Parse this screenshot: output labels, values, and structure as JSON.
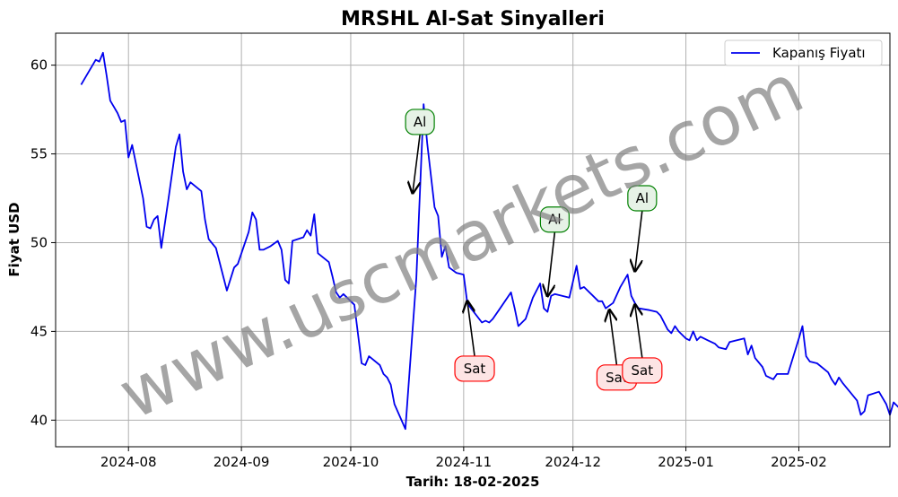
{
  "chart_data": {
    "type": "line",
    "title": "MRSHL Al-Sat Sinyalleri",
    "xlabel": "Tarih: 18-02-2025",
    "ylabel": "Fiyat USD",
    "ylim": [
      38.5,
      61.8
    ],
    "xlim": [
      "2024-07-12",
      "2025-02-26"
    ],
    "x_ticks": [
      "2024-08",
      "2024-09",
      "2024-10",
      "2024-11",
      "2024-12",
      "2025-01",
      "2025-02"
    ],
    "y_ticks": [
      40,
      45,
      50,
      55,
      60
    ],
    "grid": true,
    "legend_position": "upper-right",
    "watermark": "www.uscmarkets.com",
    "series": [
      {
        "name": "Kapanış Fiyatı",
        "color": "#0000ee",
        "points": [
          [
            "2024-07-19",
            58.9
          ],
          [
            "2024-07-23",
            60.3
          ],
          [
            "2024-07-24",
            60.2
          ],
          [
            "2024-07-25",
            60.7
          ],
          [
            "2024-07-26",
            59.4
          ],
          [
            "2024-07-27",
            58.0
          ],
          [
            "2024-07-29",
            57.3
          ],
          [
            "2024-07-30",
            56.8
          ],
          [
            "2024-07-31",
            56.9
          ],
          [
            "2024-08-01",
            54.8
          ],
          [
            "2024-08-02",
            55.5
          ],
          [
            "2024-08-05",
            52.5
          ],
          [
            "2024-08-06",
            50.9
          ],
          [
            "2024-08-07",
            50.8
          ],
          [
            "2024-08-08",
            51.3
          ],
          [
            "2024-08-09",
            51.5
          ],
          [
            "2024-08-10",
            49.7
          ],
          [
            "2024-08-12",
            52.5
          ],
          [
            "2024-08-14",
            55.4
          ],
          [
            "2024-08-15",
            56.1
          ],
          [
            "2024-08-16",
            54.0
          ],
          [
            "2024-08-17",
            53.0
          ],
          [
            "2024-08-18",
            53.4
          ],
          [
            "2024-08-21",
            52.9
          ],
          [
            "2024-08-22",
            51.3
          ],
          [
            "2024-08-23",
            50.2
          ],
          [
            "2024-08-25",
            49.7
          ],
          [
            "2024-08-28",
            47.3
          ],
          [
            "2024-08-30",
            48.6
          ],
          [
            "2024-08-31",
            48.8
          ],
          [
            "2024-09-03",
            50.6
          ],
          [
            "2024-09-04",
            51.7
          ],
          [
            "2024-09-05",
            51.3
          ],
          [
            "2024-09-06",
            49.6
          ],
          [
            "2024-09-07",
            49.6
          ],
          [
            "2024-09-09",
            49.8
          ],
          [
            "2024-09-11",
            50.1
          ],
          [
            "2024-09-12",
            49.6
          ],
          [
            "2024-09-13",
            47.9
          ],
          [
            "2024-09-14",
            47.7
          ],
          [
            "2024-09-15",
            50.1
          ],
          [
            "2024-09-18",
            50.3
          ],
          [
            "2024-09-19",
            50.7
          ],
          [
            "2024-09-20",
            50.4
          ],
          [
            "2024-09-21",
            51.6
          ],
          [
            "2024-09-22",
            49.4
          ],
          [
            "2024-09-25",
            48.9
          ],
          [
            "2024-09-26",
            48.1
          ],
          [
            "2024-09-27",
            47.2
          ],
          [
            "2024-09-28",
            46.9
          ],
          [
            "2024-09-29",
            47.1
          ],
          [
            "2024-10-02",
            46.5
          ],
          [
            "2024-10-04",
            43.2
          ],
          [
            "2024-10-05",
            43.1
          ],
          [
            "2024-10-06",
            43.6
          ],
          [
            "2024-10-09",
            43.1
          ],
          [
            "2024-10-10",
            42.6
          ],
          [
            "2024-10-11",
            42.4
          ],
          [
            "2024-10-12",
            42.0
          ],
          [
            "2024-10-13",
            40.9
          ],
          [
            "2024-10-16",
            39.5
          ],
          [
            "2024-10-19",
            48.0
          ],
          [
            "2024-10-21",
            57.8
          ],
          [
            "2024-10-22",
            55.6
          ],
          [
            "2024-10-24",
            52.0
          ],
          [
            "2024-10-25",
            51.5
          ],
          [
            "2024-10-26",
            49.2
          ],
          [
            "2024-10-27",
            49.8
          ],
          [
            "2024-10-28",
            48.6
          ],
          [
            "2024-10-30",
            48.3
          ],
          [
            "2024-11-01",
            48.2
          ],
          [
            "2024-11-02",
            46.6
          ],
          [
            "2024-11-03",
            46.3
          ],
          [
            "2024-11-06",
            45.5
          ],
          [
            "2024-11-07",
            45.6
          ],
          [
            "2024-11-08",
            45.5
          ],
          [
            "2024-11-09",
            45.7
          ],
          [
            "2024-11-11",
            46.3
          ],
          [
            "2024-11-14",
            47.2
          ],
          [
            "2024-11-15",
            46.3
          ],
          [
            "2024-11-16",
            45.3
          ],
          [
            "2024-11-18",
            45.7
          ],
          [
            "2024-11-20",
            46.9
          ],
          [
            "2024-11-22",
            47.7
          ],
          [
            "2024-11-23",
            46.3
          ],
          [
            "2024-11-24",
            46.1
          ],
          [
            "2024-11-25",
            47.0
          ],
          [
            "2024-11-26",
            47.1
          ],
          [
            "2024-11-30",
            46.9
          ],
          [
            "2024-12-02",
            48.7
          ],
          [
            "2024-12-03",
            47.4
          ],
          [
            "2024-12-04",
            47.5
          ],
          [
            "2024-12-06",
            47.1
          ],
          [
            "2024-12-08",
            46.7
          ],
          [
            "2024-12-09",
            46.7
          ],
          [
            "2024-12-10",
            46.3
          ],
          [
            "2024-12-12",
            46.6
          ],
          [
            "2024-12-14",
            47.5
          ],
          [
            "2024-12-16",
            48.2
          ],
          [
            "2024-12-17",
            47.0
          ],
          [
            "2024-12-18",
            46.6
          ],
          [
            "2024-12-19",
            46.3
          ],
          [
            "2024-12-22",
            46.2
          ],
          [
            "2024-12-24",
            46.1
          ],
          [
            "2024-12-25",
            45.9
          ],
          [
            "2024-12-27",
            45.1
          ],
          [
            "2024-12-28",
            44.9
          ],
          [
            "2024-12-29",
            45.3
          ],
          [
            "2024-12-30",
            45.0
          ],
          [
            "2025-01-01",
            44.6
          ],
          [
            "2025-01-02",
            44.5
          ],
          [
            "2025-01-03",
            45.0
          ],
          [
            "2025-01-04",
            44.5
          ],
          [
            "2025-01-05",
            44.7
          ],
          [
            "2025-01-07",
            44.5
          ],
          [
            "2025-01-09",
            44.3
          ],
          [
            "2025-01-10",
            44.1
          ],
          [
            "2025-01-12",
            44.0
          ],
          [
            "2025-01-13",
            44.4
          ],
          [
            "2025-01-15",
            44.5
          ],
          [
            "2025-01-17",
            44.6
          ],
          [
            "2025-01-18",
            43.7
          ],
          [
            "2025-01-19",
            44.2
          ],
          [
            "2025-01-20",
            43.5
          ],
          [
            "2025-01-22",
            43.0
          ],
          [
            "2025-01-23",
            42.5
          ],
          [
            "2025-01-25",
            42.3
          ],
          [
            "2025-01-26",
            42.6
          ],
          [
            "2025-01-29",
            42.6
          ],
          [
            "2025-02-01",
            44.6
          ],
          [
            "2025-02-02",
            45.3
          ],
          [
            "2025-02-03",
            43.6
          ],
          [
            "2025-02-04",
            43.3
          ],
          [
            "2025-02-06",
            43.2
          ],
          [
            "2025-02-09",
            42.7
          ],
          [
            "2025-02-10",
            42.3
          ],
          [
            "2025-02-11",
            42.0
          ],
          [
            "2025-02-12",
            42.4
          ],
          [
            "2025-02-13",
            42.1
          ],
          [
            "2025-02-15",
            41.6
          ],
          [
            "2025-02-17",
            41.1
          ],
          [
            "2025-02-18",
            40.3
          ],
          [
            "2025-02-19",
            40.5
          ],
          [
            "2025-02-20",
            41.4
          ],
          [
            "2025-02-23",
            41.6
          ],
          [
            "2025-02-25",
            40.9
          ],
          [
            "2025-02-26",
            40.3
          ],
          [
            "2025-02-27",
            41.0
          ],
          [
            "2025-03-01",
            40.6
          ],
          [
            "2025-03-02",
            40.4
          ],
          [
            "2025-03-03",
            40.3
          ]
        ]
      }
    ],
    "annotations": [
      {
        "label": "Al",
        "type": "buy",
        "date": "2024-10-18",
        "price": 52.8,
        "label_date": "2024-10-20",
        "label_price": 56.8
      },
      {
        "label": "Sat",
        "type": "sell",
        "date": "2024-11-02",
        "price": 46.7,
        "label_date": "2024-11-04",
        "label_price": 42.9
      },
      {
        "label": "Al",
        "type": "buy",
        "date": "2024-11-24",
        "price": 47.0,
        "label_date": "2024-11-26",
        "label_price": 51.3
      },
      {
        "label": "Sat",
        "type": "sell",
        "date": "2024-12-11",
        "price": 46.2,
        "label_date": "2024-12-13",
        "label_price": 42.4
      },
      {
        "label": "Sat",
        "type": "sell",
        "date": "2024-12-18",
        "price": 46.5,
        "label_date": "2024-12-20",
        "label_price": 42.8
      },
      {
        "label": "Al",
        "type": "buy",
        "date": "2024-12-18",
        "price": 48.4,
        "label_date": "2024-12-20",
        "label_price": 52.5
      }
    ],
    "colors": {
      "buy_box": "#e6f2e6",
      "buy_border": "#008000",
      "sell_box": "#fde4e4",
      "sell_border": "#ff0000"
    }
  }
}
